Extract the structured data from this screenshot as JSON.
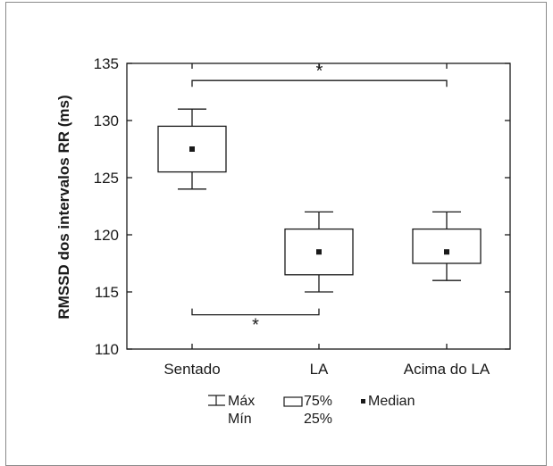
{
  "chart_data": {
    "type": "box",
    "ylabel": "RMSSD dos intervalos RR (ms)",
    "ylim": [
      110,
      135
    ],
    "yticks": [
      110,
      115,
      120,
      125,
      130,
      135
    ],
    "categories": [
      "Sentado",
      "LA",
      "Acima do LA"
    ],
    "boxes": [
      {
        "category": "Sentado",
        "min": 124,
        "q1": 125.5,
        "median": 127.5,
        "q3": 129.5,
        "max": 131
      },
      {
        "category": "LA",
        "min": 115,
        "q1": 116.5,
        "median": 118.5,
        "q3": 120.5,
        "max": 122
      },
      {
        "category": "Acima do LA",
        "min": 116,
        "q1": 117.5,
        "median": 118.5,
        "q3": 120.5,
        "max": 122
      }
    ],
    "significance": [
      {
        "from": "Sentado",
        "to": "Acima do LA",
        "y": 133.5,
        "label": "*"
      },
      {
        "from": "Sentado",
        "to": "LA",
        "y": 113,
        "label": "*"
      }
    ],
    "legend": {
      "whisker_top": "Máx",
      "whisker_bottom": "Mín",
      "box_top": "75%",
      "box_bottom": "25%",
      "median": "Median"
    }
  }
}
